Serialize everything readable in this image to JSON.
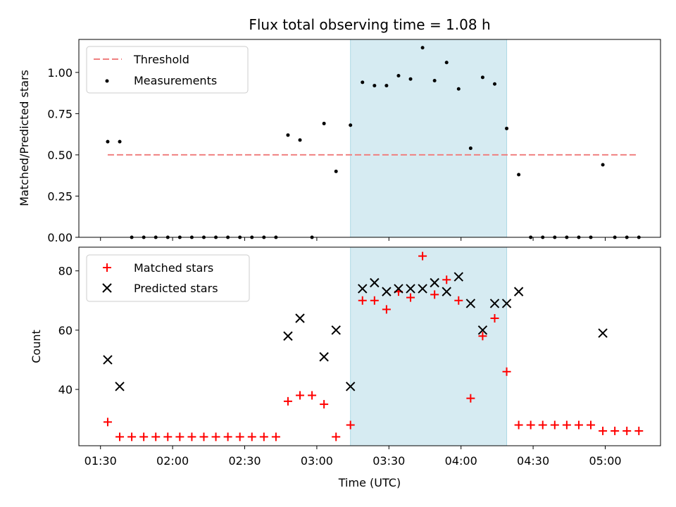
{
  "chart_data": [
    {
      "type": "scatter",
      "title": "Flux total observing time = 1.08 h",
      "ylabel": "Matched/Predicted stars",
      "xlim": [
        "01:21",
        "05:23"
      ],
      "ylim": [
        0,
        1.2
      ],
      "yticks": [
        "0.00",
        "0.25",
        "0.50",
        "0.75",
        "1.00"
      ],
      "legend": "top-left",
      "shaded_interval": [
        "03:14",
        "04:19"
      ],
      "shade_color": "#add8e6",
      "threshold": {
        "name": "Threshold",
        "value": 0.5,
        "x_start": "01:33",
        "x_end": "05:13",
        "color": "#f08080",
        "style": "dashed"
      },
      "series": [
        {
          "name": "Measurements",
          "color": "#000000",
          "marker": "dot",
          "points": [
            [
              "01:33",
              0.58
            ],
            [
              "01:38",
              0.58
            ],
            [
              "01:43",
              0.0
            ],
            [
              "01:48",
              0.0
            ],
            [
              "01:53",
              0.0
            ],
            [
              "01:58",
              0.0
            ],
            [
              "02:03",
              0.0
            ],
            [
              "02:08",
              0.0
            ],
            [
              "02:13",
              0.0
            ],
            [
              "02:18",
              0.0
            ],
            [
              "02:23",
              0.0
            ],
            [
              "02:28",
              0.0
            ],
            [
              "02:33",
              0.0
            ],
            [
              "02:38",
              0.0
            ],
            [
              "02:43",
              0.0
            ],
            [
              "02:48",
              0.62
            ],
            [
              "02:53",
              0.59
            ],
            [
              "02:58",
              0.0
            ],
            [
              "03:03",
              0.69
            ],
            [
              "03:08",
              0.4
            ],
            [
              "03:14",
              0.68
            ],
            [
              "03:19",
              0.94
            ],
            [
              "03:24",
              0.92
            ],
            [
              "03:29",
              0.92
            ],
            [
              "03:34",
              0.98
            ],
            [
              "03:39",
              0.96
            ],
            [
              "03:44",
              1.15
            ],
            [
              "03:49",
              0.95
            ],
            [
              "03:54",
              1.06
            ],
            [
              "03:59",
              0.9
            ],
            [
              "04:04",
              0.54
            ],
            [
              "04:09",
              0.97
            ],
            [
              "04:14",
              0.93
            ],
            [
              "04:19",
              0.66
            ],
            [
              "04:24",
              0.38
            ],
            [
              "04:29",
              0.0
            ],
            [
              "04:34",
              0.0
            ],
            [
              "04:39",
              0.0
            ],
            [
              "04:44",
              0.0
            ],
            [
              "04:49",
              0.0
            ],
            [
              "04:54",
              0.0
            ],
            [
              "04:59",
              0.44
            ],
            [
              "05:04",
              0.0
            ],
            [
              "05:09",
              0.0
            ],
            [
              "05:14",
              0.0
            ]
          ]
        }
      ]
    },
    {
      "type": "scatter",
      "ylabel": "Count",
      "xlabel": "Time (UTC)",
      "xlim": [
        "01:21",
        "05:23"
      ],
      "ylim": [
        21,
        88
      ],
      "yticks": [
        "40",
        "60",
        "80"
      ],
      "xticks": [
        "01:30",
        "02:00",
        "02:30",
        "03:00",
        "03:30",
        "04:00",
        "04:30",
        "05:00"
      ],
      "legend": "top-left",
      "shaded_interval": [
        "03:14",
        "04:19"
      ],
      "shade_color": "#add8e6",
      "series": [
        {
          "name": "Matched stars",
          "color": "#ff0000",
          "marker": "plus",
          "points": [
            [
              "01:33",
              29
            ],
            [
              "01:38",
              24
            ],
            [
              "01:43",
              24
            ],
            [
              "01:48",
              24
            ],
            [
              "01:53",
              24
            ],
            [
              "01:58",
              24
            ],
            [
              "02:03",
              24
            ],
            [
              "02:08",
              24
            ],
            [
              "02:13",
              24
            ],
            [
              "02:18",
              24
            ],
            [
              "02:23",
              24
            ],
            [
              "02:28",
              24
            ],
            [
              "02:33",
              24
            ],
            [
              "02:38",
              24
            ],
            [
              "02:43",
              24
            ],
            [
              "02:48",
              36
            ],
            [
              "02:53",
              38
            ],
            [
              "02:58",
              38
            ],
            [
              "03:03",
              35
            ],
            [
              "03:08",
              24
            ],
            [
              "03:14",
              28
            ],
            [
              "03:19",
              70
            ],
            [
              "03:24",
              70
            ],
            [
              "03:29",
              67
            ],
            [
              "03:34",
              73
            ],
            [
              "03:39",
              71
            ],
            [
              "03:44",
              85
            ],
            [
              "03:49",
              72
            ],
            [
              "03:54",
              77
            ],
            [
              "03:59",
              70
            ],
            [
              "04:04",
              37
            ],
            [
              "04:09",
              58
            ],
            [
              "04:14",
              64
            ],
            [
              "04:19",
              46
            ],
            [
              "04:24",
              28
            ],
            [
              "04:29",
              28
            ],
            [
              "04:34",
              28
            ],
            [
              "04:39",
              28
            ],
            [
              "04:44",
              28
            ],
            [
              "04:49",
              28
            ],
            [
              "04:54",
              28
            ],
            [
              "04:59",
              26
            ],
            [
              "05:04",
              26
            ],
            [
              "05:09",
              26
            ],
            [
              "05:14",
              26
            ]
          ]
        },
        {
          "name": "Predicted stars",
          "color": "#000000",
          "marker": "x",
          "points": [
            [
              "01:33",
              50
            ],
            [
              "01:38",
              41
            ],
            [
              "02:48",
              58
            ],
            [
              "02:53",
              64
            ],
            [
              "03:03",
              51
            ],
            [
              "03:08",
              60
            ],
            [
              "03:14",
              41
            ],
            [
              "03:19",
              74
            ],
            [
              "03:24",
              76
            ],
            [
              "03:29",
              73
            ],
            [
              "03:34",
              74
            ],
            [
              "03:39",
              74
            ],
            [
              "03:44",
              74
            ],
            [
              "03:49",
              76
            ],
            [
              "03:54",
              73
            ],
            [
              "03:59",
              78
            ],
            [
              "04:04",
              69
            ],
            [
              "04:09",
              60
            ],
            [
              "04:14",
              69
            ],
            [
              "04:19",
              69
            ],
            [
              "04:24",
              73
            ],
            [
              "04:59",
              59
            ]
          ]
        }
      ]
    }
  ]
}
